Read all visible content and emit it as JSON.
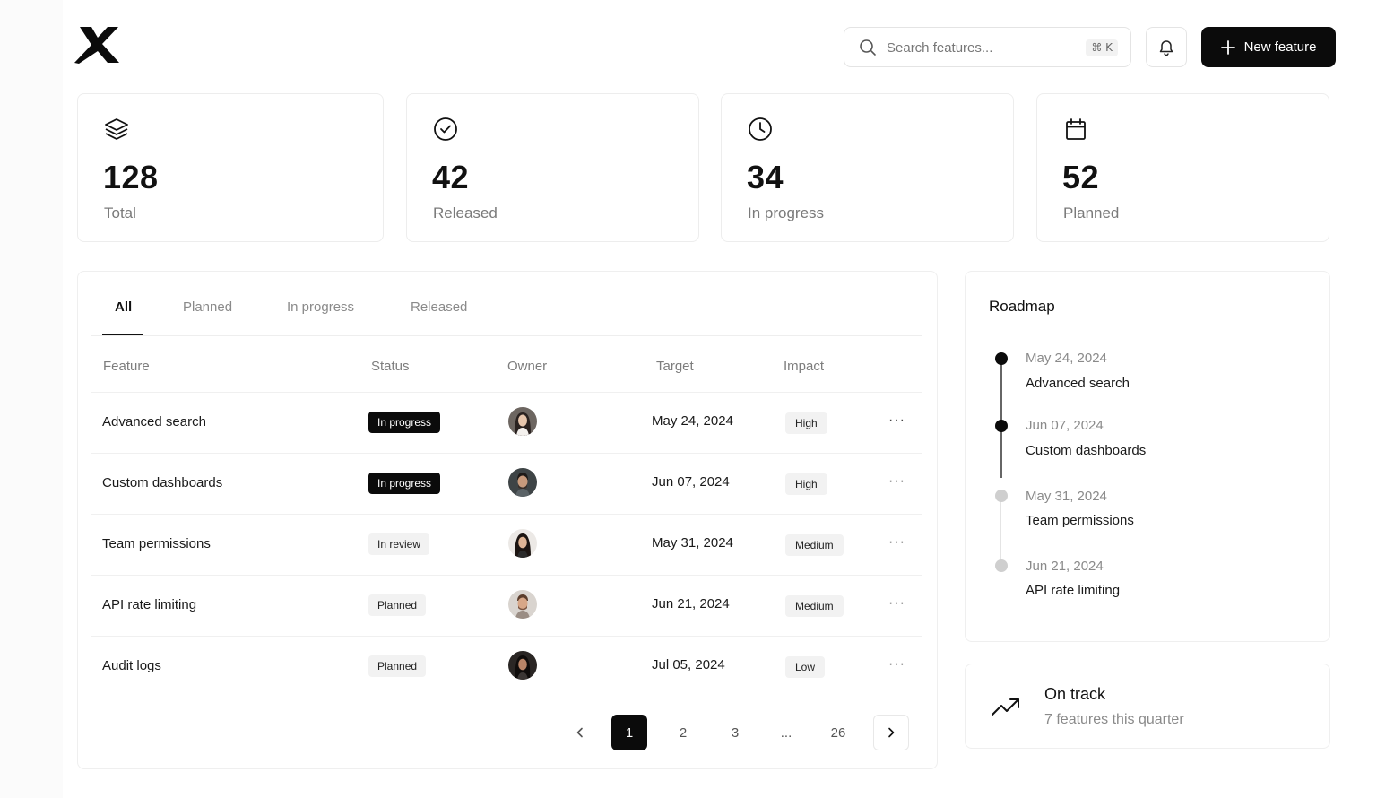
{
  "header": {
    "search_placeholder": "Search features...",
    "search_shortcut": "⌘ K",
    "new_button_label": "New feature",
    "brand_color": "#0b0b0b"
  },
  "stats": [
    {
      "icon": "layers-icon",
      "value": "128",
      "label": "Total"
    },
    {
      "icon": "check-circle-icon",
      "value": "42",
      "label": "Released"
    },
    {
      "icon": "clock-icon",
      "value": "34",
      "label": "In progress"
    },
    {
      "icon": "calendar-icon",
      "value": "52",
      "label": "Planned"
    }
  ],
  "tabs": [
    {
      "label": "All",
      "active": true
    },
    {
      "label": "Planned",
      "active": false
    },
    {
      "label": "In progress",
      "active": false
    },
    {
      "label": "Released",
      "active": false
    }
  ],
  "table": {
    "columns": [
      "Feature",
      "Status",
      "Owner",
      "Target",
      "Impact"
    ],
    "rows": [
      {
        "feature": "Advanced search",
        "status": "In progress",
        "status_style": "dark",
        "owner": "avatar-1",
        "target": "May 24, 2024",
        "impact": "High"
      },
      {
        "feature": "Custom dashboards",
        "status": "In progress",
        "status_style": "dark",
        "owner": "avatar-2",
        "target": "Jun 07, 2024",
        "impact": "High"
      },
      {
        "feature": "Team permissions",
        "status": "In review",
        "status_style": "light",
        "owner": "avatar-3",
        "target": "May 31, 2024",
        "impact": "Medium"
      },
      {
        "feature": "API rate limiting",
        "status": "Planned",
        "status_style": "light",
        "owner": "avatar-4",
        "target": "Jun 21, 2024",
        "impact": "Medium"
      },
      {
        "feature": "Audit logs",
        "status": "Planned",
        "status_style": "light",
        "owner": "avatar-5",
        "target": "Jul 05, 2024",
        "impact": "Low"
      }
    ],
    "row_menu": "···"
  },
  "pagination": {
    "pages": [
      "1",
      "2",
      "3",
      "...",
      "26"
    ],
    "current": "1"
  },
  "roadmap": {
    "title": "Roadmap",
    "items": [
      {
        "date": "May 24, 2024",
        "name": "Advanced search",
        "state": "done"
      },
      {
        "date": "Jun 07, 2024",
        "name": "Custom dashboards",
        "state": "done"
      },
      {
        "date": "May 31, 2024",
        "name": "Team permissions",
        "state": "upcoming"
      },
      {
        "date": "Jun 21, 2024",
        "name": "API rate limiting",
        "state": "upcoming"
      }
    ]
  },
  "on_track": {
    "title": "On track",
    "subtitle": "7 features this quarter"
  }
}
